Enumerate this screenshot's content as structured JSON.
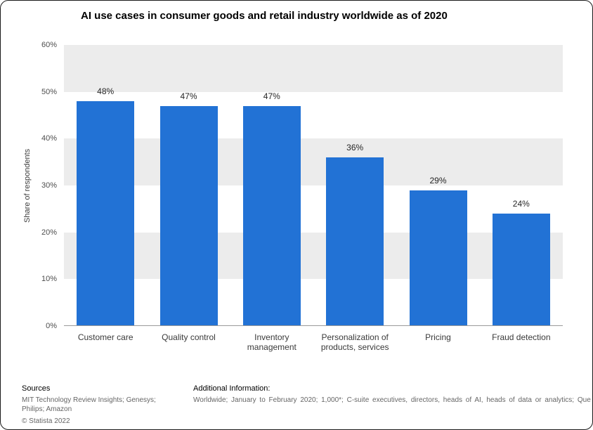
{
  "chart_data": {
    "type": "bar",
    "title": "AI use cases in consumer goods and retail industry worldwide as of 2020",
    "categories": [
      "Customer care",
      "Quality control",
      "Inventory management",
      "Personalization of products, services",
      "Pricing",
      "Fraud detection"
    ],
    "values": [
      48,
      47,
      47,
      36,
      29,
      24
    ],
    "value_labels": [
      "48%",
      "47%",
      "47%",
      "36%",
      "29%",
      "24%"
    ],
    "xlabel": "",
    "ylabel": "Share of respondents",
    "ylim": [
      0,
      60
    ],
    "ytick_step": 10,
    "ytick_labels": [
      "0%",
      "10%",
      "20%",
      "30%",
      "40%",
      "50%",
      "60%"
    ],
    "grid": "alternating horizontal gray bands",
    "legend": "none",
    "bar_color": "#2272d5",
    "band_gray": "#ececec"
  },
  "footer": {
    "sources_heading": "Sources",
    "sources_lines": [
      "MIT Technology Review Insights; Genesys;",
      "Philips; Amazon"
    ],
    "copyright": "© Statista 2022",
    "additional_heading": "Additional Information:",
    "additional_text": "Worldwide; January to February 2020; 1,000*; C-suite executives, directors, heads of AI, heads of data or analytics; Que"
  }
}
